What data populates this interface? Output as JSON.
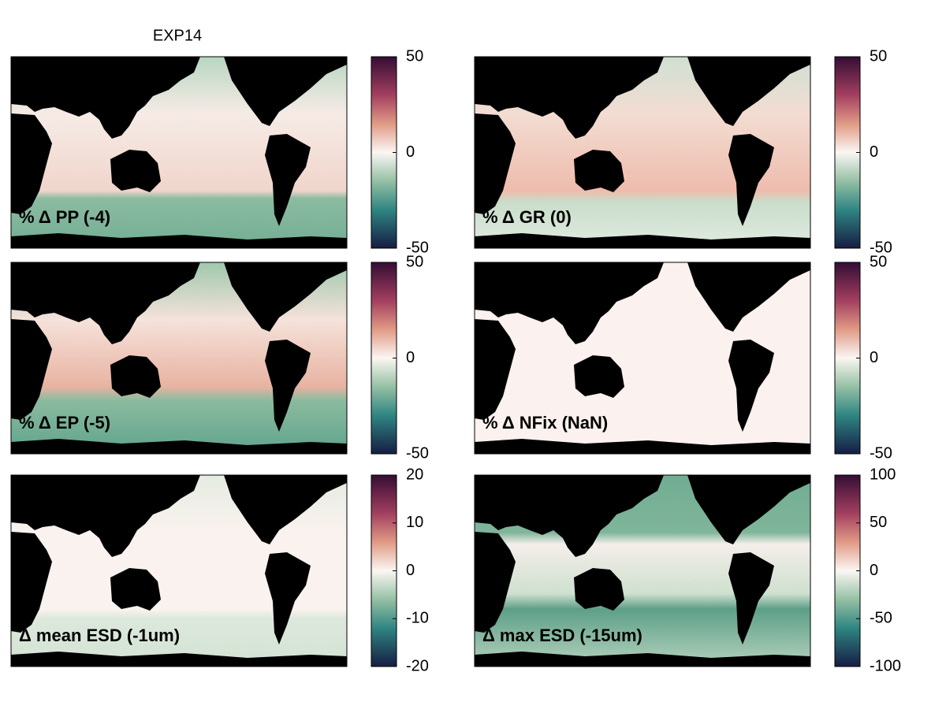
{
  "title": "EXP14",
  "panels": [
    {
      "label": "% Δ PP (-4)",
      "colorbar": {
        "lim": [
          -50,
          50
        ],
        "ticks": [
          -50,
          0,
          50
        ]
      }
    },
    {
      "label": "% Δ GR (0)",
      "colorbar": {
        "lim": [
          -50,
          50
        ],
        "ticks": [
          -50,
          0,
          50
        ]
      }
    },
    {
      "label": "% Δ EP (-5)",
      "colorbar": {
        "lim": [
          -50,
          50
        ],
        "ticks": [
          -50,
          0,
          50
        ]
      }
    },
    {
      "label": "% Δ NFix (NaN)",
      "colorbar": {
        "lim": [
          -50,
          50
        ],
        "ticks": [
          -50,
          0,
          50
        ]
      }
    },
    {
      "label": "Δ mean ESD (-1um)",
      "colorbar": {
        "lim": [
          -20,
          20
        ],
        "ticks": [
          -20,
          -10,
          0,
          10,
          20
        ]
      }
    },
    {
      "label": "Δ max ESD (-15um)",
      "colorbar": {
        "lim": [
          -100,
          100
        ],
        "ticks": [
          -100,
          -50,
          0,
          50,
          100
        ]
      }
    }
  ]
}
